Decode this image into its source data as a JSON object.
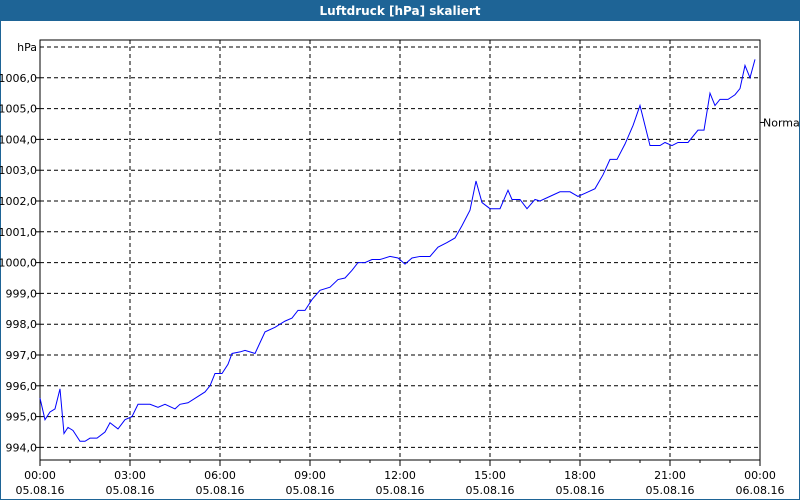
{
  "window": {
    "title": "Luftdruck [hPa] skaliert",
    "title_bar_color": "#1e6496"
  },
  "chart_data": {
    "type": "line",
    "title": "Luftdruck [hPa] skaliert",
    "ylabel": "hPa",
    "ylim": [
      993.6,
      1007
    ],
    "yticks": [
      994,
      995,
      996,
      997,
      998,
      999,
      1000,
      1001,
      1002,
      1003,
      1004,
      1005,
      1006
    ],
    "ytick_labels": [
      "994,0",
      "995,0",
      "996,0",
      "997,0",
      "998,0",
      "999,0",
      "1000,0",
      "1001,0",
      "1002,0",
      "1003,0",
      "1004,0",
      "1005,0",
      "1006,0"
    ],
    "xlim": [
      "05.08.16 00:00",
      "06.08.16 00:00"
    ],
    "xticks": [
      {
        "time": "00:00",
        "date": "05.08.16"
      },
      {
        "time": "03:00",
        "date": "05.08.16"
      },
      {
        "time": "06:00",
        "date": "05.08.16"
      },
      {
        "time": "09:00",
        "date": "05.08.16"
      },
      {
        "time": "12:00",
        "date": "05.08.16"
      },
      {
        "time": "15:00",
        "date": "05.08.16"
      },
      {
        "time": "18:00",
        "date": "05.08.16"
      },
      {
        "time": "21:00",
        "date": "05.08.16"
      },
      {
        "time": "00:00",
        "date": "06.08.16"
      }
    ],
    "grid": true,
    "reference_marker": {
      "label": "Normal",
      "value": 1004.55
    },
    "series": [
      {
        "color": "#0000ff",
        "points": [
          [
            "00:00",
            995.6
          ],
          [
            "00:10",
            994.9
          ],
          [
            "00:20",
            995.15
          ],
          [
            "00:30",
            995.25
          ],
          [
            "00:40",
            995.9
          ],
          [
            "00:48",
            994.45
          ],
          [
            "00:56",
            994.65
          ],
          [
            "01:06",
            994.55
          ],
          [
            "01:20",
            994.2
          ],
          [
            "01:30",
            994.2
          ],
          [
            "01:40",
            994.3
          ],
          [
            "01:54",
            994.3
          ],
          [
            "02:10",
            994.5
          ],
          [
            "02:20",
            994.8
          ],
          [
            "02:36",
            994.6
          ],
          [
            "02:50",
            994.9
          ],
          [
            "03:04",
            995.0
          ],
          [
            "03:16",
            995.4
          ],
          [
            "03:40",
            995.4
          ],
          [
            "03:56",
            995.3
          ],
          [
            "04:10",
            995.4
          ],
          [
            "04:30",
            995.25
          ],
          [
            "04:40",
            995.4
          ],
          [
            "04:56",
            995.45
          ],
          [
            "05:30",
            995.8
          ],
          [
            "05:40",
            996.0
          ],
          [
            "05:50",
            996.4
          ],
          [
            "06:04",
            996.4
          ],
          [
            "06:16",
            996.7
          ],
          [
            "06:24",
            997.05
          ],
          [
            "06:40",
            997.1
          ],
          [
            "06:50",
            997.15
          ],
          [
            "07:10",
            997.05
          ],
          [
            "07:30",
            997.75
          ],
          [
            "07:50",
            997.9
          ],
          [
            "08:10",
            998.1
          ],
          [
            "08:24",
            998.2
          ],
          [
            "08:36",
            998.45
          ],
          [
            "08:50",
            998.45
          ],
          [
            "09:04",
            998.8
          ],
          [
            "09:20",
            999.1
          ],
          [
            "09:40",
            999.2
          ],
          [
            "09:56",
            999.45
          ],
          [
            "10:10",
            999.5
          ],
          [
            "10:24",
            999.75
          ],
          [
            "10:36",
            1000.0
          ],
          [
            "10:50",
            1000.0
          ],
          [
            "11:04",
            1000.1
          ],
          [
            "11:20",
            1000.1
          ],
          [
            "11:40",
            1000.2
          ],
          [
            "11:56",
            1000.15
          ],
          [
            "12:10",
            999.95
          ],
          [
            "12:24",
            1000.15
          ],
          [
            "12:40",
            1000.2
          ],
          [
            "13:00",
            1000.2
          ],
          [
            "13:16",
            1000.5
          ],
          [
            "13:34",
            1000.65
          ],
          [
            "13:50",
            1000.8
          ],
          [
            "14:04",
            1001.2
          ],
          [
            "14:20",
            1001.7
          ],
          [
            "14:32",
            1002.65
          ],
          [
            "14:44",
            1001.95
          ],
          [
            "15:00",
            1001.75
          ],
          [
            "15:20",
            1001.75
          ],
          [
            "15:36",
            1002.35
          ],
          [
            "15:44",
            1002.05
          ],
          [
            "16:00",
            1002.05
          ],
          [
            "16:14",
            1001.75
          ],
          [
            "16:30",
            1002.05
          ],
          [
            "16:40",
            1002.0
          ],
          [
            "17:00",
            1002.15
          ],
          [
            "17:20",
            1002.3
          ],
          [
            "17:40",
            1002.3
          ],
          [
            "17:56",
            1002.15
          ],
          [
            "18:10",
            1002.25
          ],
          [
            "18:30",
            1002.4
          ],
          [
            "18:46",
            1002.85
          ],
          [
            "19:00",
            1003.35
          ],
          [
            "19:14",
            1003.35
          ],
          [
            "19:30",
            1003.85
          ],
          [
            "19:46",
            1004.45
          ],
          [
            "20:00",
            1005.1
          ],
          [
            "20:20",
            1003.8
          ],
          [
            "20:40",
            1003.8
          ],
          [
            "20:50",
            1003.9
          ],
          [
            "21:04",
            1003.8
          ],
          [
            "21:16",
            1003.9
          ],
          [
            "21:36",
            1003.9
          ],
          [
            "21:56",
            1004.3
          ],
          [
            "22:08",
            1004.3
          ],
          [
            "22:20",
            1005.5
          ],
          [
            "22:30",
            1005.1
          ],
          [
            "22:40",
            1005.3
          ],
          [
            "22:56",
            1005.3
          ],
          [
            "23:10",
            1005.45
          ],
          [
            "23:20",
            1005.65
          ],
          [
            "23:30",
            1006.4
          ],
          [
            "23:40",
            1006.0
          ],
          [
            "23:50",
            1006.6
          ]
        ]
      }
    ]
  }
}
